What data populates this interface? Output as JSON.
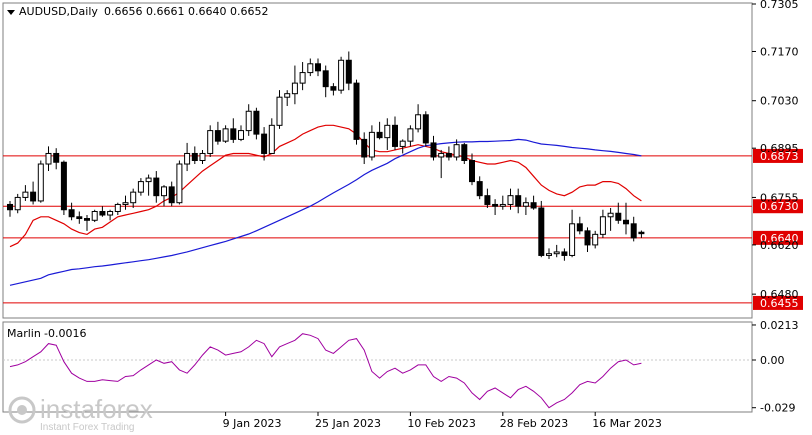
{
  "header": {
    "symbol": "AUDUSD,Daily",
    "ohlc": "0.6656 0.6661 0.6640 0.6652"
  },
  "sub_panel": {
    "name": "Marlin",
    "value": "-0.0016"
  },
  "watermark": {
    "brand": "instaforex",
    "tagline": "Instant Forex Trading"
  },
  "colors": {
    "bull": "#ffffff",
    "bear": "#000000",
    "ma_fast": "#e00000",
    "ma_slow": "#1a1ad6",
    "level": "#e00000",
    "marlin": "#a000a0",
    "grid": "#c8c8c8",
    "frame": "#7f7f7f"
  },
  "chart_data": [
    {
      "type": "candlestick",
      "ylim": [
        0.6415,
        0.7305
      ],
      "y_ticks": [
        "0.7305",
        "0.7170",
        "0.7030",
        "0.6895",
        "0.6755",
        "0.6620",
        "0.6480"
      ],
      "x_tick_labels": [
        {
          "i": 28,
          "label": "9 Jan 2023"
        },
        {
          "i": 40,
          "label": "25 Jan 2023"
        },
        {
          "i": 52,
          "label": "10 Feb 2023"
        },
        {
          "i": 64,
          "label": "28 Feb 2023"
        },
        {
          "i": 76,
          "label": "16 Mar 2023"
        }
      ],
      "horizontal_levels": [
        {
          "value": 0.6873,
          "label": "0.6873"
        },
        {
          "value": 0.673,
          "label": "0.6730"
        },
        {
          "value": 0.664,
          "label": "0.6640"
        },
        {
          "value": 0.6455,
          "label": "0.6455"
        }
      ],
      "candles": [
        [
          0.6735,
          0.6745,
          0.67,
          0.672
        ],
        [
          0.672,
          0.6765,
          0.671,
          0.6755
        ],
        [
          0.6755,
          0.679,
          0.6745,
          0.677
        ],
        [
          0.677,
          0.68,
          0.6735,
          0.6745
        ],
        [
          0.6745,
          0.686,
          0.674,
          0.685
        ],
        [
          0.685,
          0.69,
          0.683,
          0.688
        ],
        [
          0.688,
          0.6895,
          0.6835,
          0.6855
        ],
        [
          0.6855,
          0.686,
          0.6705,
          0.672
        ],
        [
          0.672,
          0.674,
          0.669,
          0.67
        ],
        [
          0.67,
          0.6715,
          0.668,
          0.6695
        ],
        [
          0.6695,
          0.6705,
          0.666,
          0.669
        ],
        [
          0.669,
          0.672,
          0.6685,
          0.6715
        ],
        [
          0.6715,
          0.673,
          0.67,
          0.6705
        ],
        [
          0.6705,
          0.672,
          0.669,
          0.6715
        ],
        [
          0.6715,
          0.674,
          0.6705,
          0.6735
        ],
        [
          0.6735,
          0.676,
          0.672,
          0.674
        ],
        [
          0.674,
          0.678,
          0.6725,
          0.677
        ],
        [
          0.677,
          0.681,
          0.676,
          0.68
        ],
        [
          0.68,
          0.682,
          0.676,
          0.681
        ],
        [
          0.681,
          0.683,
          0.674,
          0.676
        ],
        [
          0.676,
          0.679,
          0.673,
          0.6785
        ],
        [
          0.6785,
          0.68,
          0.673,
          0.674
        ],
        [
          0.674,
          0.686,
          0.6735,
          0.685
        ],
        [
          0.685,
          0.691,
          0.683,
          0.688
        ],
        [
          0.688,
          0.69,
          0.685,
          0.686
        ],
        [
          0.686,
          0.689,
          0.685,
          0.688
        ],
        [
          0.688,
          0.696,
          0.687,
          0.6945
        ],
        [
          0.6945,
          0.697,
          0.6905,
          0.6915
        ],
        [
          0.6915,
          0.696,
          0.691,
          0.695
        ],
        [
          0.695,
          0.698,
          0.691,
          0.692
        ],
        [
          0.692,
          0.696,
          0.6915,
          0.6945
        ],
        [
          0.6945,
          0.702,
          0.693,
          0.7
        ],
        [
          0.7,
          0.701,
          0.692,
          0.6935
        ],
        [
          0.6935,
          0.6955,
          0.686,
          0.688
        ],
        [
          0.688,
          0.698,
          0.688,
          0.696
        ],
        [
          0.696,
          0.706,
          0.695,
          0.704
        ],
        [
          0.704,
          0.706,
          0.7015,
          0.705
        ],
        [
          0.705,
          0.713,
          0.702,
          0.708
        ],
        [
          0.708,
          0.714,
          0.706,
          0.711
        ],
        [
          0.711,
          0.715,
          0.71,
          0.7135
        ],
        [
          0.7135,
          0.715,
          0.71,
          0.7115
        ],
        [
          0.7115,
          0.713,
          0.704,
          0.707
        ],
        [
          0.707,
          0.708,
          0.7045,
          0.706
        ],
        [
          0.706,
          0.7155,
          0.705,
          0.7145
        ],
        [
          0.7145,
          0.717,
          0.706,
          0.708
        ],
        [
          0.708,
          0.709,
          0.6905,
          0.692
        ],
        [
          0.692,
          0.694,
          0.685,
          0.687
        ],
        [
          0.687,
          0.696,
          0.686,
          0.694
        ],
        [
          0.694,
          0.697,
          0.692,
          0.6925
        ],
        [
          0.6925,
          0.698,
          0.689,
          0.696
        ],
        [
          0.696,
          0.6985,
          0.689,
          0.69
        ],
        [
          0.69,
          0.692,
          0.688,
          0.6915
        ],
        [
          0.6915,
          0.696,
          0.69,
          0.695
        ],
        [
          0.695,
          0.702,
          0.694,
          0.699
        ],
        [
          0.699,
          0.7,
          0.69,
          0.691
        ],
        [
          0.691,
          0.693,
          0.686,
          0.687
        ],
        [
          0.687,
          0.689,
          0.681,
          0.688
        ],
        [
          0.688,
          0.69,
          0.686,
          0.687
        ],
        [
          0.687,
          0.692,
          0.686,
          0.6905
        ],
        [
          0.6905,
          0.691,
          0.685,
          0.686
        ],
        [
          0.686,
          0.688,
          0.679,
          0.68
        ],
        [
          0.68,
          0.6815,
          0.675,
          0.676
        ],
        [
          0.676,
          0.678,
          0.6725,
          0.6735
        ],
        [
          0.6735,
          0.675,
          0.6705,
          0.673
        ],
        [
          0.673,
          0.676,
          0.672,
          0.6735
        ],
        [
          0.6735,
          0.678,
          0.672,
          0.676
        ],
        [
          0.676,
          0.678,
          0.671,
          0.673
        ],
        [
          0.673,
          0.6755,
          0.6705,
          0.674
        ],
        [
          0.674,
          0.676,
          0.672,
          0.6725
        ],
        [
          0.6725,
          0.6745,
          0.6585,
          0.659
        ],
        [
          0.659,
          0.661,
          0.658,
          0.6595
        ],
        [
          0.6595,
          0.662,
          0.6585,
          0.66
        ],
        [
          0.66,
          0.661,
          0.6575,
          0.659
        ],
        [
          0.659,
          0.672,
          0.6585,
          0.668
        ],
        [
          0.668,
          0.67,
          0.665,
          0.666
        ],
        [
          0.666,
          0.667,
          0.66,
          0.662
        ],
        [
          0.662,
          0.666,
          0.661,
          0.665
        ],
        [
          0.665,
          0.672,
          0.664,
          0.67
        ],
        [
          0.67,
          0.6725,
          0.666,
          0.671
        ],
        [
          0.671,
          0.674,
          0.668,
          0.669
        ],
        [
          0.669,
          0.674,
          0.665,
          0.668
        ],
        [
          0.668,
          0.67,
          0.663,
          0.664
        ],
        [
          0.6656,
          0.6661,
          0.664,
          0.6652
        ]
      ],
      "series": [
        {
          "name": "",
          "color": "#e00000",
          "values": [
            0.6615,
            0.6625,
            0.665,
            0.669,
            0.67,
            0.67,
            0.669,
            0.668,
            0.6665,
            0.6655,
            0.665,
            0.6665,
            0.667,
            0.6685,
            0.67,
            0.6705,
            0.671,
            0.6715,
            0.672,
            0.673,
            0.6745,
            0.6755,
            0.677,
            0.679,
            0.681,
            0.683,
            0.6845,
            0.686,
            0.6875,
            0.688,
            0.688,
            0.688,
            0.6875,
            0.687,
            0.688,
            0.69,
            0.691,
            0.692,
            0.6935,
            0.6945,
            0.6955,
            0.696,
            0.696,
            0.6955,
            0.695,
            0.6935,
            0.691,
            0.689,
            0.6885,
            0.6885,
            0.689,
            0.6895,
            0.69,
            0.6905,
            0.69,
            0.6895,
            0.6885,
            0.688,
            0.6875,
            0.687,
            0.686,
            0.6855,
            0.685,
            0.685,
            0.6855,
            0.686,
            0.6855,
            0.684,
            0.6815,
            0.679,
            0.6775,
            0.6765,
            0.676,
            0.677,
            0.6785,
            0.679,
            0.679,
            0.68,
            0.68,
            0.6795,
            0.678,
            0.676,
            0.6745
          ]
        },
        {
          "name": "",
          "color": "#1a1ad6",
          "values": [
            0.6505,
            0.651,
            0.6515,
            0.652,
            0.6525,
            0.6535,
            0.654,
            0.6545,
            0.655,
            0.6552,
            0.6555,
            0.6558,
            0.656,
            0.6563,
            0.6566,
            0.6569,
            0.6572,
            0.6575,
            0.6578,
            0.6582,
            0.6586,
            0.659,
            0.6595,
            0.66,
            0.6606,
            0.6612,
            0.6618,
            0.6624,
            0.663,
            0.6637,
            0.6644,
            0.6651,
            0.666,
            0.667,
            0.668,
            0.669,
            0.67,
            0.671,
            0.672,
            0.673,
            0.6742,
            0.6755,
            0.6768,
            0.678,
            0.6792,
            0.6805,
            0.682,
            0.6832,
            0.6842,
            0.6852,
            0.6865,
            0.6875,
            0.6885,
            0.6895,
            0.6902,
            0.6905,
            0.6908,
            0.691,
            0.6912,
            0.6913,
            0.6913,
            0.6914,
            0.6914,
            0.6915,
            0.6916,
            0.6917,
            0.692,
            0.6918,
            0.6912,
            0.6907,
            0.6905,
            0.6903,
            0.69,
            0.6897,
            0.6895,
            0.6893,
            0.689,
            0.6888,
            0.6886,
            0.6883,
            0.688,
            0.6877,
            0.6873
          ]
        }
      ]
    },
    {
      "type": "line",
      "ylim": [
        -0.031,
        0.0225
      ],
      "y_ticks": [
        "0.0213",
        "0.00",
        "-0.029"
      ],
      "series": [
        {
          "name": "",
          "color": "#a000a0",
          "values": [
            -0.004,
            -0.003,
            -0.001,
            0.002,
            0.005,
            0.01,
            0.009,
            -0.001,
            -0.008,
            -0.011,
            -0.013,
            -0.013,
            -0.012,
            -0.0125,
            -0.013,
            -0.01,
            -0.0095,
            -0.006,
            -0.003,
            0.0,
            -0.002,
            -0.001,
            -0.006,
            -0.008,
            -0.003,
            0.003,
            0.008,
            0.006,
            0.003,
            0.004,
            0.005,
            0.008,
            0.012,
            0.01,
            0.002,
            0.008,
            0.01,
            0.012,
            0.016,
            0.015,
            0.013,
            0.006,
            0.004,
            0.008,
            0.012,
            0.013,
            0.006,
            -0.007,
            -0.011,
            -0.007,
            -0.005,
            -0.008,
            -0.006,
            -0.003,
            -0.003,
            -0.01,
            -0.013,
            -0.01,
            -0.011,
            -0.014,
            -0.02,
            -0.024,
            -0.019,
            -0.017,
            -0.02,
            -0.023,
            -0.018,
            -0.016,
            -0.019,
            -0.023,
            -0.029,
            -0.026,
            -0.024,
            -0.02,
            -0.015,
            -0.013,
            -0.014,
            -0.01,
            -0.005,
            -0.001,
            0.0,
            -0.003,
            -0.002
          ]
        }
      ]
    }
  ]
}
